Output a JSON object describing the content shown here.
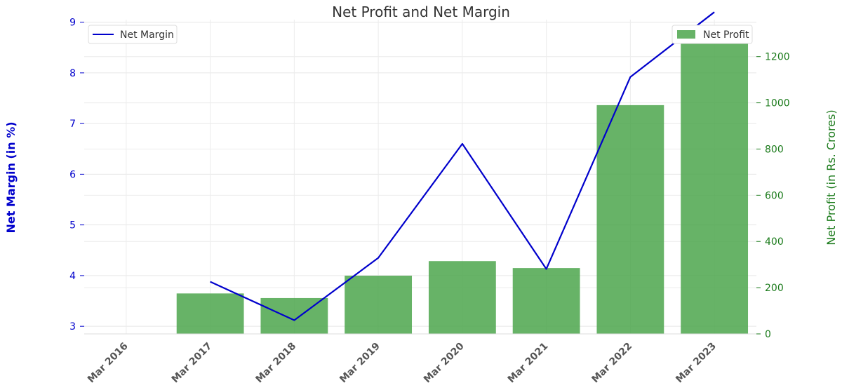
{
  "chart_data": {
    "type": "bar+line",
    "title": "Net Profit and Net Margin",
    "categories": [
      "Mar 2016",
      "Mar 2017",
      "Mar 2018",
      "Mar 2019",
      "Mar 2020",
      "Mar 2021",
      "Mar 2022",
      "Mar 2023"
    ],
    "series": [
      {
        "name": "Net Profit",
        "type": "bar",
        "axis": "right",
        "color": "#4ca64c",
        "values": [
          null,
          175,
          155,
          252,
          315,
          285,
          990,
          1330
        ]
      },
      {
        "name": "Net Margin",
        "type": "line",
        "axis": "left",
        "color": "#0000cc",
        "values": [
          null,
          3.88,
          3.12,
          4.35,
          6.6,
          4.13,
          7.92,
          9.2
        ]
      }
    ],
    "ylabel_left": "Net Margin (in %)",
    "ylabel_right": "Net Profit (in Rs. Crores)",
    "ylim_left": [
      2.85,
      9.05
    ],
    "ylim_right": [
      0,
      1360
    ],
    "yticks_left": [
      3,
      4,
      5,
      6,
      7,
      8,
      9
    ],
    "yticks_right": [
      0,
      200,
      400,
      600,
      800,
      1000,
      1200
    ],
    "grid": true,
    "legend_line_position": "top-left",
    "legend_bar_position": "top-right"
  }
}
